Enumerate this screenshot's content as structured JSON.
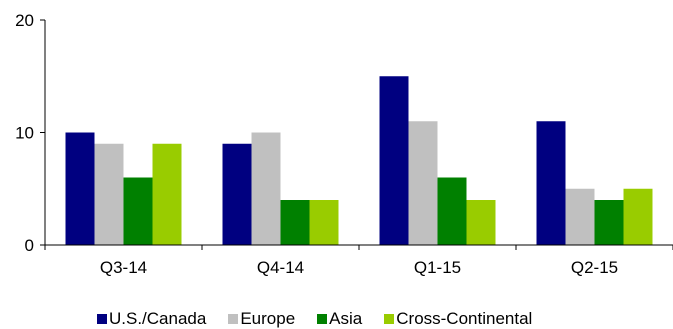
{
  "chart_data": {
    "type": "bar",
    "categories": [
      "Q3-14",
      "Q4-14",
      "Q1-15",
      "Q2-15"
    ],
    "series": [
      {
        "name": "U.S./Canada",
        "values": [
          10,
          9,
          15,
          11
        ],
        "color": "#000080"
      },
      {
        "name": "Europe",
        "values": [
          9,
          10,
          11,
          5
        ],
        "color": "#c0c0c0"
      },
      {
        "name": "Asia",
        "values": [
          6,
          4,
          6,
          4
        ],
        "color": "#008000"
      },
      {
        "name": "Cross-Continental",
        "values": [
          9,
          4,
          4,
          5
        ],
        "color": "#99cc00"
      }
    ],
    "title": "",
    "xlabel": "",
    "ylabel": "",
    "ylim": [
      0,
      20
    ],
    "yticks": [
      0,
      10,
      20
    ],
    "grid": false,
    "legend_position": "bottom"
  }
}
